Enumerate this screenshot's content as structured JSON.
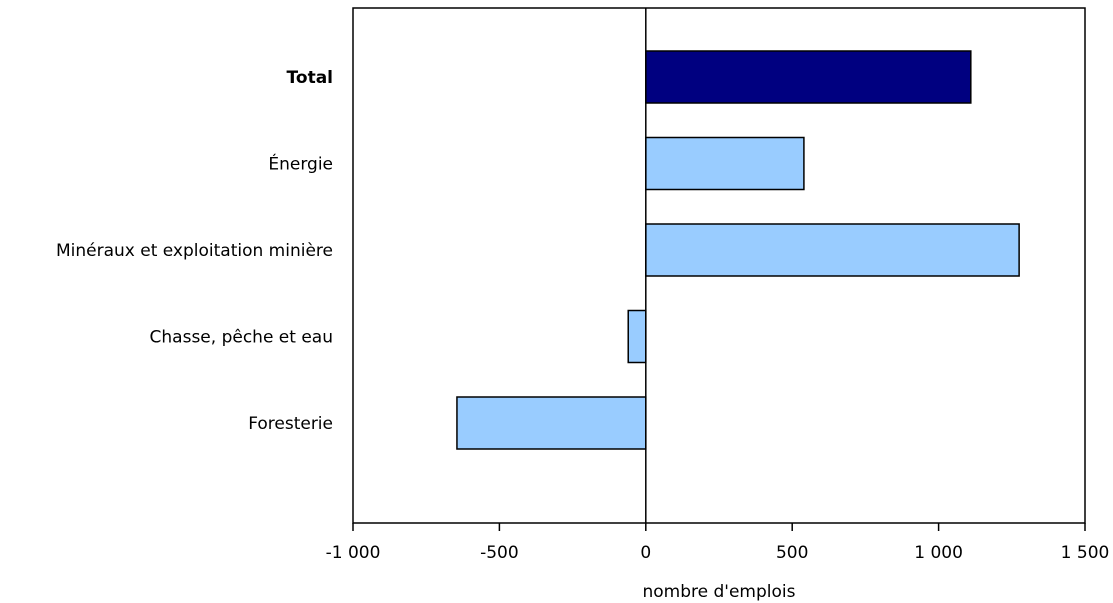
{
  "chart_data": {
    "type": "bar",
    "orientation": "horizontal",
    "categories": [
      "Total",
      "Énergie",
      "Minéraux et exploitation minière",
      "Chasse, pêche et eau",
      "Foresterie"
    ],
    "values": [
      1110,
      540,
      1275,
      -60,
      -645
    ],
    "xlabel": "nombre d'emplois",
    "xlim": [
      -1000,
      1500
    ],
    "xticks": [
      -1000,
      -500,
      0,
      500,
      1000,
      1500
    ],
    "xtick_labels": [
      "-1 000",
      "-500",
      "0",
      "500",
      "1 000",
      "1 500"
    ],
    "grid": false,
    "colors": {
      "total": "#000080",
      "default": "#99CCFF",
      "outline": "#000000"
    },
    "emphasized_category": "Total"
  }
}
